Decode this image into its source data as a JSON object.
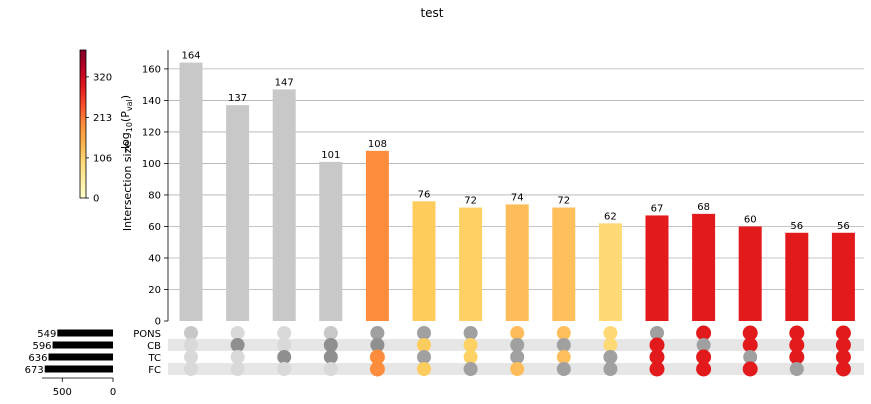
{
  "title": "test",
  "chart_data": {
    "type": "bar",
    "title": "test",
    "ylabel": "Intersection size",
    "ylim": [
      0,
      172
    ],
    "yticks": [
      0,
      20,
      40,
      60,
      80,
      100,
      120,
      140,
      160
    ],
    "grid": true,
    "values": [
      164,
      137,
      147,
      101,
      108,
      76,
      72,
      74,
      72,
      62,
      67,
      68,
      60,
      56,
      56
    ],
    "value_labels": [
      "164",
      "137",
      "147",
      "101",
      "108",
      "76",
      "72",
      "74",
      "72",
      "62",
      "67",
      "68",
      "60",
      "56",
      "56"
    ],
    "bar_colors": [
      "#c8c8c8",
      "#c8c8c8",
      "#c8c8c8",
      "#c8c8c8",
      "#fd8d3c",
      "#fecc5c",
      "#fed165",
      "#febd5a",
      "#febf5c",
      "#fed976",
      "#e31a1c",
      "#e31a1c",
      "#e31a1c",
      "#e31a1c",
      "#e31a1c"
    ],
    "sets": [
      "PONS",
      "CB",
      "TC",
      "FC"
    ],
    "set_sizes": [
      549,
      596,
      636,
      673
    ],
    "set_size_labels": [
      "549",
      "596",
      "636",
      "673"
    ],
    "set_size_xticks": [
      "500",
      "0"
    ],
    "set_size_xlim": [
      0,
      700
    ],
    "matrix": [
      [
        1,
        0,
        0,
        0
      ],
      [
        0,
        1,
        0,
        0
      ],
      [
        0,
        0,
        1,
        0
      ],
      [
        1,
        1,
        1,
        0
      ],
      [
        1,
        1,
        1,
        1
      ],
      [
        1,
        1,
        1,
        1
      ],
      [
        1,
        1,
        1,
        1
      ],
      [
        1,
        1,
        1,
        1
      ],
      [
        1,
        1,
        1,
        1
      ],
      [
        1,
        1,
        1,
        1
      ],
      [
        1,
        1,
        1,
        1
      ],
      [
        1,
        1,
        1,
        1
      ],
      [
        1,
        1,
        1,
        1
      ],
      [
        1,
        1,
        1,
        1
      ],
      [
        1,
        1,
        1,
        1
      ]
    ],
    "dot_colors": [
      [
        "#c8c8c8",
        "#8f8f8f",
        "#8f8f8f",
        "#c8c8c8"
      ],
      [
        "#a0a0a0",
        "#8f8f8f",
        "#c8c8c8",
        "#a0a0a0"
      ],
      [
        "#a0a0a0",
        "#c8c8c8",
        "#8f8f8f",
        "#8f8f8f"
      ],
      [
        "#c8c8c8",
        "#8f8f8f",
        "#8f8f8f",
        "#8f8f8f"
      ],
      [
        "#a0a0a0",
        "#8f8f8f",
        "#fd8d3c",
        "#fd8d3c"
      ],
      [
        "#a0a0a0",
        "#fecc5c",
        "#a0a0a0",
        "#fecc5c"
      ],
      [
        "#a0a0a0",
        "#fed165",
        "#fed165",
        "#a0a0a0"
      ],
      [
        "#febd5a",
        "#a0a0a0",
        "#a0a0a0",
        "#febd5a"
      ],
      [
        "#febf5c",
        "#a0a0a0",
        "#febf5c",
        "#a0a0a0"
      ],
      [
        "#fed976",
        "#fed976",
        "#a0a0a0",
        "#a0a0a0"
      ],
      [
        "#a0a0a0",
        "#e31a1c",
        "#e31a1c",
        "#e31a1c"
      ],
      [
        "#e31a1c",
        "#a0a0a0",
        "#e31a1c",
        "#e31a1c"
      ],
      [
        "#e31a1c",
        "#e31a1c",
        "#a0a0a0",
        "#e31a1c"
      ],
      [
        "#e31a1c",
        "#e31a1c",
        "#e31a1c",
        "#a0a0a0"
      ],
      [
        "#e31a1c",
        "#e31a1c",
        "#e31a1c",
        "#e31a1c"
      ]
    ],
    "colorbar": {
      "label": "-log10(Pval)",
      "ticks": [
        "0",
        "106",
        "213",
        "320"
      ],
      "tick_values": [
        0,
        106,
        213,
        320
      ],
      "vmin": 0,
      "vmax": 391,
      "colors": [
        "#ffffcc",
        "#ffeda0",
        "#fed976",
        "#feb24c",
        "#fd8d3c",
        "#fc4e2a",
        "#e31a1c",
        "#bd0026",
        "#800026"
      ]
    }
  }
}
